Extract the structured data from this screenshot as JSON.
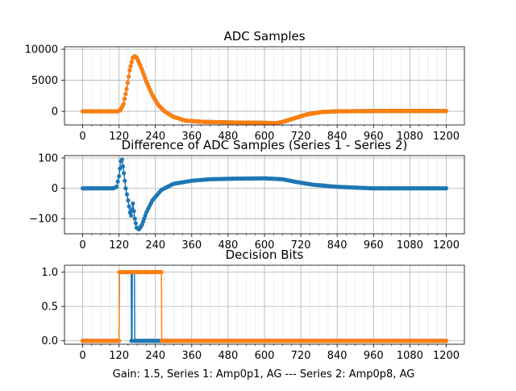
{
  "figure": {
    "footer": "Gain: 1.5, Series 1: Amp0p1, AG --- Series 2: Amp0p8, AG"
  },
  "colors": {
    "series1": "#1f77b4",
    "series2": "#ff7f0e",
    "grid": "#b0b0b0",
    "axes": "#000000"
  },
  "chart_data": [
    {
      "type": "line",
      "title": "ADC Samples",
      "xlabel": "",
      "ylabel": "",
      "xlim": [
        -60,
        1260
      ],
      "ylim": [
        -2200,
        10400
      ],
      "grid": true,
      "x_ticks": [
        0,
        120,
        240,
        360,
        480,
        600,
        720,
        840,
        960,
        1080,
        1200
      ],
      "y_ticks": [
        0,
        5000,
        10000
      ],
      "x_tick_labels": [
        "0",
        "120",
        "240",
        "360",
        "480",
        "600",
        "720",
        "840",
        "960",
        "1080",
        "1200"
      ],
      "y_tick_labels": [
        "0",
        "5000",
        "10000"
      ],
      "markers": true,
      "series": [
        {
          "name": "Series 1",
          "color": "#1f77b4",
          "points": [
            [
              0,
              0
            ],
            [
              115,
              0
            ],
            [
              125,
              200
            ],
            [
              135,
              1200
            ],
            [
              145,
              3600
            ],
            [
              155,
              6600
            ],
            [
              165,
              8600
            ],
            [
              172,
              8900
            ],
            [
              180,
              8500
            ],
            [
              195,
              6800
            ],
            [
              210,
              4800
            ],
            [
              230,
              2600
            ],
            [
              250,
              1000
            ],
            [
              270,
              0
            ],
            [
              300,
              -900
            ],
            [
              340,
              -1500
            ],
            [
              400,
              -1700
            ],
            [
              500,
              -1800
            ],
            [
              600,
              -1850
            ],
            [
              640,
              -1900
            ],
            [
              660,
              -1700
            ],
            [
              700,
              -1100
            ],
            [
              740,
              -500
            ],
            [
              790,
              -100
            ],
            [
              840,
              0
            ],
            [
              1000,
              60
            ],
            [
              1200,
              50
            ]
          ]
        },
        {
          "name": "Series 2",
          "color": "#ff7f0e",
          "points": [
            [
              0,
              0
            ],
            [
              115,
              0
            ],
            [
              125,
              200
            ],
            [
              135,
              1200
            ],
            [
              145,
              3600
            ],
            [
              155,
              6600
            ],
            [
              165,
              8600
            ],
            [
              172,
              8900
            ],
            [
              180,
              8500
            ],
            [
              195,
              6800
            ],
            [
              210,
              4800
            ],
            [
              230,
              2600
            ],
            [
              250,
              1000
            ],
            [
              270,
              0
            ],
            [
              300,
              -900
            ],
            [
              340,
              -1500
            ],
            [
              400,
              -1700
            ],
            [
              500,
              -1800
            ],
            [
              600,
              -1850
            ],
            [
              640,
              -1900
            ],
            [
              660,
              -1700
            ],
            [
              700,
              -1100
            ],
            [
              740,
              -500
            ],
            [
              790,
              -100
            ],
            [
              840,
              0
            ],
            [
              1000,
              60
            ],
            [
              1200,
              50
            ]
          ]
        }
      ]
    },
    {
      "type": "line",
      "title": "Difference of ADC Samples (Series 1 - Series 2)",
      "xlabel": "",
      "ylabel": "",
      "xlim": [
        -60,
        1260
      ],
      "ylim": [
        -150,
        108
      ],
      "grid": true,
      "x_ticks": [
        0,
        120,
        240,
        360,
        480,
        600,
        720,
        840,
        960,
        1080,
        1200
      ],
      "y_ticks": [
        -100,
        0,
        100
      ],
      "x_tick_labels": [
        "0",
        "120",
        "240",
        "360",
        "480",
        "600",
        "720",
        "840",
        "960",
        "1080",
        "1200"
      ],
      "y_tick_labels": [
        "−100",
        "0",
        "100"
      ],
      "markers": true,
      "series": [
        {
          "name": "Series 1 - Series 2",
          "color": "#1f77b4",
          "points": [
            [
              0,
              0
            ],
            [
              100,
              0
            ],
            [
              112,
              5
            ],
            [
              120,
              40
            ],
            [
              126,
              90
            ],
            [
              130,
              95
            ],
            [
              136,
              50
            ],
            [
              142,
              0
            ],
            [
              150,
              -40
            ],
            [
              156,
              -80
            ],
            [
              160,
              -90
            ],
            [
              166,
              -50
            ],
            [
              172,
              -100
            ],
            [
              178,
              -130
            ],
            [
              186,
              -135
            ],
            [
              196,
              -120
            ],
            [
              210,
              -80
            ],
            [
              230,
              -40
            ],
            [
              260,
              -5
            ],
            [
              300,
              15
            ],
            [
              360,
              25
            ],
            [
              420,
              30
            ],
            [
              500,
              32
            ],
            [
              600,
              33
            ],
            [
              660,
              30
            ],
            [
              700,
              22
            ],
            [
              760,
              12
            ],
            [
              840,
              5
            ],
            [
              960,
              0
            ],
            [
              1200,
              0
            ]
          ]
        }
      ]
    },
    {
      "type": "line",
      "title": "Decision Bits",
      "xlabel": "Gain: 1.5, Series 1: Amp0p1, AG --- Series 2: Amp0p8, AG",
      "ylabel": "",
      "xlim": [
        -60,
        1260
      ],
      "ylim": [
        -0.05,
        1.1
      ],
      "grid": true,
      "x_ticks": [
        0,
        120,
        240,
        360,
        480,
        600,
        720,
        840,
        960,
        1080,
        1200
      ],
      "y_ticks": [
        0,
        0.5,
        1
      ],
      "x_tick_labels": [
        "0",
        "120",
        "240",
        "360",
        "480",
        "600",
        "720",
        "840",
        "960",
        "1080",
        "1200"
      ],
      "y_tick_labels": [
        "0.0",
        "0.5",
        "1.0"
      ],
      "markers": true,
      "series": [
        {
          "name": "Series 1",
          "color": "#1f77b4",
          "points": [
            [
              0,
              0
            ],
            [
              120,
              0
            ],
            [
              121,
              1
            ],
            [
              160,
              1
            ],
            [
              161,
              0
            ],
            [
              163,
              0
            ],
            [
              164,
              1
            ],
            [
              171,
              1
            ],
            [
              172,
              0
            ],
            [
              1200,
              0
            ]
          ]
        },
        {
          "name": "Series 2",
          "color": "#ff7f0e",
          "points": [
            [
              0,
              0
            ],
            [
              120,
              0
            ],
            [
              121,
              1
            ],
            [
              260,
              1
            ],
            [
              261,
              0
            ],
            [
              1200,
              0
            ]
          ]
        }
      ]
    }
  ]
}
